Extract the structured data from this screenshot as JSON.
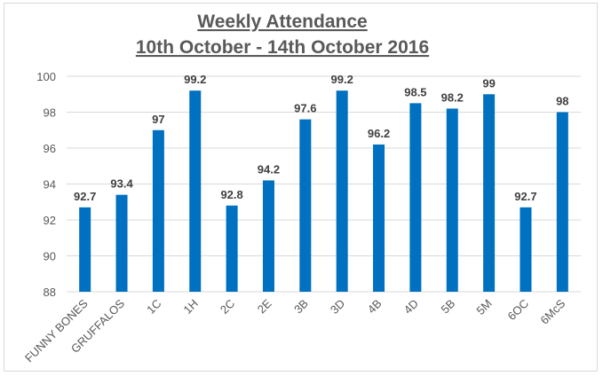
{
  "chart_data": {
    "type": "bar",
    "title": "Weekly Attendance",
    "subtitle": "10th October - 14th  October 2016",
    "xlabel": "",
    "ylabel": "",
    "categories": [
      "FUNNY BONES",
      "GRUFFALOS",
      "1C",
      "1H",
      "2C",
      "2E",
      "3B",
      "3D",
      "4B",
      "4D",
      "5B",
      "5M",
      "6OC",
      "6McS"
    ],
    "values": [
      92.7,
      93.4,
      97,
      99.2,
      92.8,
      94.2,
      97.6,
      99.2,
      96.2,
      98.5,
      98.2,
      99,
      92.7,
      98
    ],
    "value_labels": [
      "92.7",
      "93.4",
      "97",
      "99.2",
      "92.8",
      "94.2",
      "97.6",
      "99.2",
      "96.2",
      "98.5",
      "98.2",
      "99",
      "92.7",
      "98"
    ],
    "ylim": [
      88,
      100
    ],
    "yticks": [
      88,
      90,
      92,
      94,
      96,
      98,
      100
    ],
    "grid": true,
    "legend": "none",
    "bar_color": "#0070C0"
  }
}
